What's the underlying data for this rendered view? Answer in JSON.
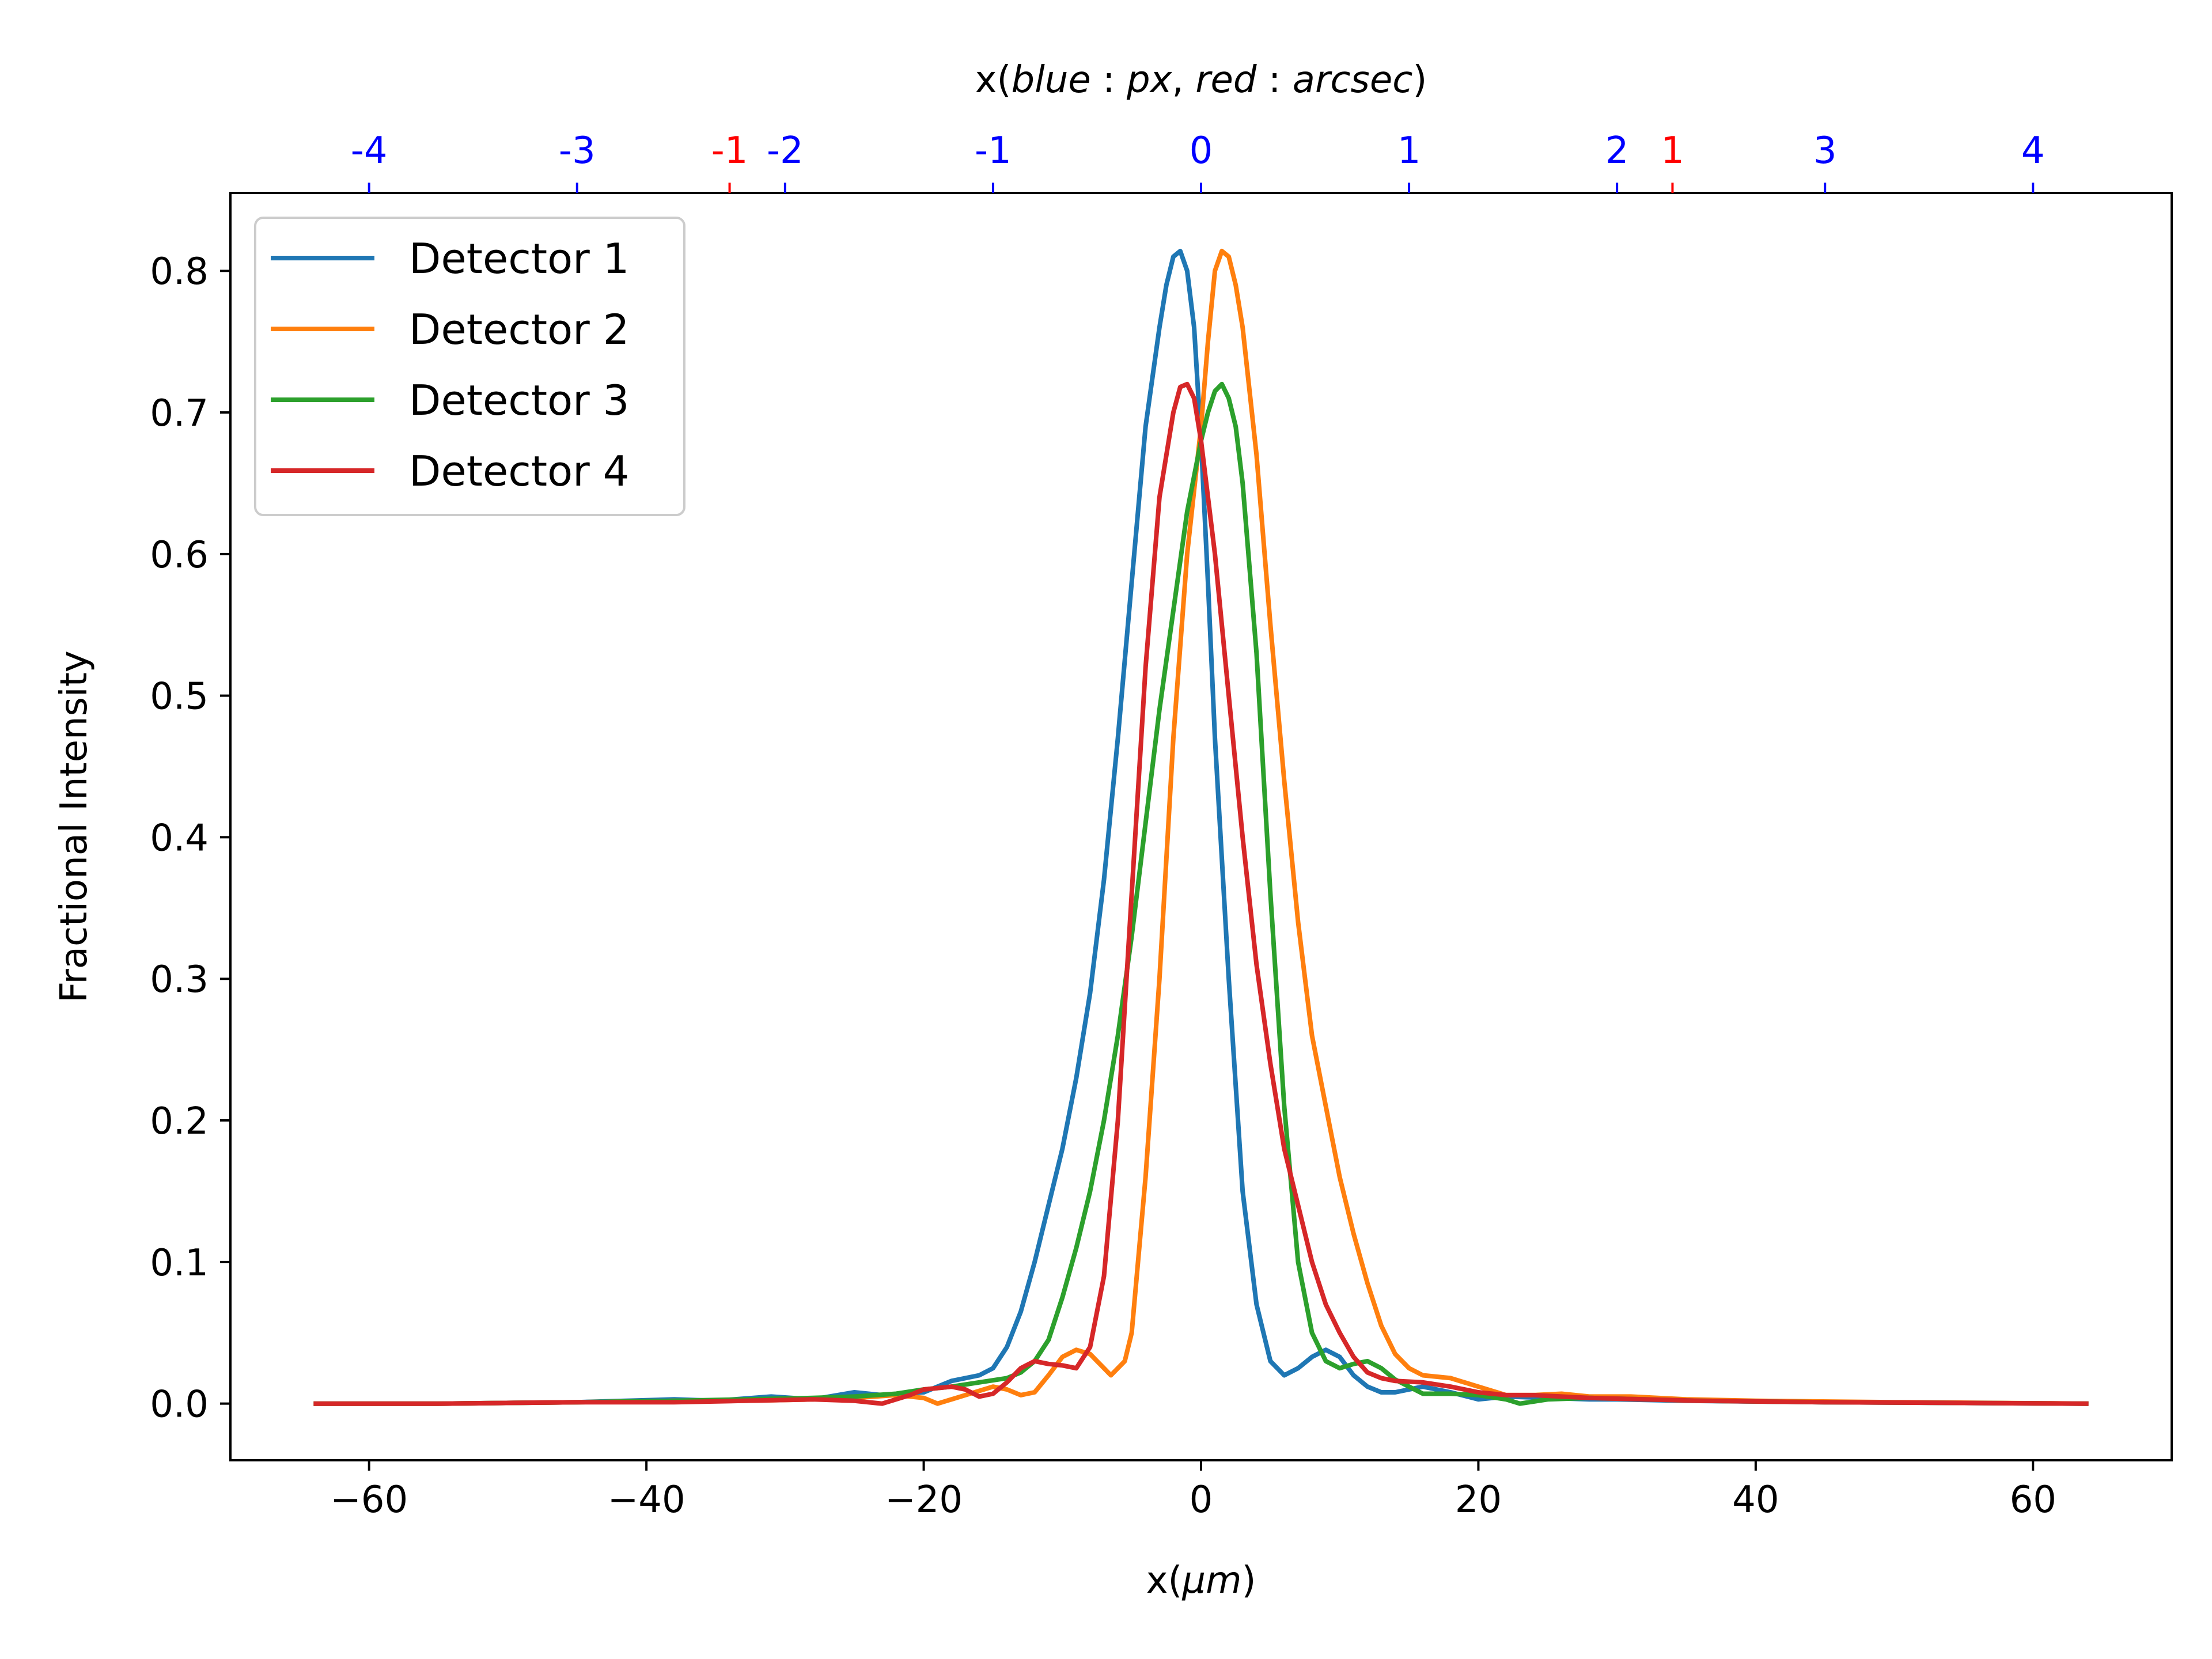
{
  "chart_data": {
    "type": "line",
    "xlabel_prefix": "x(",
    "xlabel_unit": "μm",
    "xlabel_suffix": ")",
    "ylabel": "Fractional Intensity",
    "top_label_prefix": "x(",
    "top_label_blue": "blue",
    "top_label_sep1": " : ",
    "top_label_px": "px",
    "top_label_comma": ", ",
    "top_label_red": "red",
    "top_label_sep2": " : ",
    "top_label_arcsec": "arcsec",
    "top_label_suffix": ")",
    "xlim": [
      -70,
      70
    ],
    "ylim": [
      -0.04,
      0.855
    ],
    "x_ticks": [
      -60,
      -40,
      -20,
      0,
      20,
      40,
      60
    ],
    "x_tick_labels": [
      "−60",
      "−40",
      "−20",
      "0",
      "20",
      "40",
      "60"
    ],
    "y_ticks": [
      0.0,
      0.1,
      0.2,
      0.3,
      0.4,
      0.5,
      0.6,
      0.7,
      0.8
    ],
    "y_tick_labels": [
      "0.0",
      "0.1",
      "0.2",
      "0.3",
      "0.4",
      "0.5",
      "0.6",
      "0.7",
      "0.8"
    ],
    "top_ticks_blue": [
      {
        "x": -60,
        "label": "-4"
      },
      {
        "x": -45,
        "label": "-3"
      },
      {
        "x": -30,
        "label": "-2"
      },
      {
        "x": -15,
        "label": "-1"
      },
      {
        "x": 0,
        "label": "0"
      },
      {
        "x": 15,
        "label": "1"
      },
      {
        "x": 30,
        "label": "2"
      },
      {
        "x": 45,
        "label": "3"
      },
      {
        "x": 60,
        "label": "4"
      }
    ],
    "top_ticks_red": [
      {
        "x": -34,
        "label": "-1"
      },
      {
        "x": 34,
        "label": "1"
      }
    ],
    "blue_color": "#0000ff",
    "red_color": "#ff0000",
    "legend_position": "upper-left",
    "series": [
      {
        "name": "Detector 1",
        "color": "#1f77b4",
        "points": [
          [
            -64,
            0.0
          ],
          [
            -55,
            0.0
          ],
          [
            -45,
            0.001
          ],
          [
            -38,
            0.003
          ],
          [
            -35,
            0.002
          ],
          [
            -31,
            0.005
          ],
          [
            -28,
            0.003
          ],
          [
            -25,
            0.008
          ],
          [
            -23,
            0.006
          ],
          [
            -20,
            0.008
          ],
          [
            -18,
            0.016
          ],
          [
            -16,
            0.02
          ],
          [
            -15,
            0.025
          ],
          [
            -14,
            0.04
          ],
          [
            -13,
            0.065
          ],
          [
            -12,
            0.1
          ],
          [
            -11,
            0.14
          ],
          [
            -10,
            0.18
          ],
          [
            -9,
            0.23
          ],
          [
            -8,
            0.29
          ],
          [
            -7,
            0.37
          ],
          [
            -6,
            0.47
          ],
          [
            -5,
            0.58
          ],
          [
            -4,
            0.69
          ],
          [
            -3,
            0.76
          ],
          [
            -2.5,
            0.79
          ],
          [
            -2,
            0.81
          ],
          [
            -1.5,
            0.814
          ],
          [
            -1,
            0.8
          ],
          [
            -0.5,
            0.76
          ],
          [
            0,
            0.68
          ],
          [
            0.5,
            0.58
          ],
          [
            1,
            0.47
          ],
          [
            2,
            0.3
          ],
          [
            3,
            0.15
          ],
          [
            4,
            0.07
          ],
          [
            5,
            0.03
          ],
          [
            6,
            0.02
          ],
          [
            7,
            0.025
          ],
          [
            8,
            0.033
          ],
          [
            9,
            0.038
          ],
          [
            10,
            0.033
          ],
          [
            11,
            0.02
          ],
          [
            12,
            0.012
          ],
          [
            13,
            0.008
          ],
          [
            14,
            0.008
          ],
          [
            15,
            0.01
          ],
          [
            16,
            0.012
          ],
          [
            18,
            0.008
          ],
          [
            20,
            0.003
          ],
          [
            22,
            0.005
          ],
          [
            25,
            0.004
          ],
          [
            28,
            0.003
          ],
          [
            30,
            0.003
          ],
          [
            35,
            0.002
          ],
          [
            45,
            0.001
          ],
          [
            64,
            0.0
          ]
        ]
      },
      {
        "name": "Detector 2",
        "color": "#ff7f0e",
        "points": [
          [
            -64,
            0.0
          ],
          [
            -55,
            0.0
          ],
          [
            -45,
            0.001
          ],
          [
            -38,
            0.002
          ],
          [
            -33,
            0.002
          ],
          [
            -28,
            0.003
          ],
          [
            -25,
            0.004
          ],
          [
            -22,
            0.006
          ],
          [
            -20,
            0.004
          ],
          [
            -19,
            0.0
          ],
          [
            -17,
            0.006
          ],
          [
            -15,
            0.012
          ],
          [
            -14,
            0.01
          ],
          [
            -13,
            0.006
          ],
          [
            -12,
            0.008
          ],
          [
            -11,
            0.02
          ],
          [
            -10,
            0.033
          ],
          [
            -9,
            0.038
          ],
          [
            -8,
            0.035
          ],
          [
            -7,
            0.025
          ],
          [
            -6.5,
            0.02
          ],
          [
            -5.5,
            0.03
          ],
          [
            -5,
            0.05
          ],
          [
            -4,
            0.16
          ],
          [
            -3,
            0.3
          ],
          [
            -2,
            0.47
          ],
          [
            -1,
            0.6
          ],
          [
            0,
            0.69
          ],
          [
            0.5,
            0.75
          ],
          [
            1,
            0.8
          ],
          [
            1.5,
            0.814
          ],
          [
            2,
            0.81
          ],
          [
            2.5,
            0.79
          ],
          [
            3,
            0.76
          ],
          [
            4,
            0.67
          ],
          [
            5,
            0.55
          ],
          [
            6,
            0.44
          ],
          [
            7,
            0.34
          ],
          [
            8,
            0.26
          ],
          [
            9,
            0.21
          ],
          [
            10,
            0.16
          ],
          [
            11,
            0.12
          ],
          [
            12,
            0.085
          ],
          [
            13,
            0.055
          ],
          [
            14,
            0.035
          ],
          [
            15,
            0.025
          ],
          [
            16,
            0.02
          ],
          [
            18,
            0.018
          ],
          [
            20,
            0.012
          ],
          [
            22,
            0.006
          ],
          [
            24,
            0.006
          ],
          [
            26,
            0.007
          ],
          [
            28,
            0.005
          ],
          [
            31,
            0.005
          ],
          [
            35,
            0.003
          ],
          [
            40,
            0.002
          ],
          [
            50,
            0.001
          ],
          [
            64,
            0.0
          ]
        ]
      },
      {
        "name": "Detector 3",
        "color": "#2ca02c",
        "points": [
          [
            -64,
            0.0
          ],
          [
            -55,
            0.0
          ],
          [
            -45,
            0.001
          ],
          [
            -38,
            0.002
          ],
          [
            -33,
            0.003
          ],
          [
            -28,
            0.004
          ],
          [
            -25,
            0.005
          ],
          [
            -22,
            0.007
          ],
          [
            -20,
            0.01
          ],
          [
            -18,
            0.012
          ],
          [
            -16,
            0.015
          ],
          [
            -14,
            0.018
          ],
          [
            -13,
            0.022
          ],
          [
            -12,
            0.03
          ],
          [
            -11,
            0.045
          ],
          [
            -10,
            0.075
          ],
          [
            -9,
            0.11
          ],
          [
            -8,
            0.15
          ],
          [
            -7,
            0.2
          ],
          [
            -6,
            0.26
          ],
          [
            -5,
            0.33
          ],
          [
            -4,
            0.41
          ],
          [
            -3,
            0.49
          ],
          [
            -2,
            0.56
          ],
          [
            -1,
            0.63
          ],
          [
            0,
            0.68
          ],
          [
            0.5,
            0.7
          ],
          [
            1,
            0.715
          ],
          [
            1.5,
            0.72
          ],
          [
            2,
            0.71
          ],
          [
            2.5,
            0.69
          ],
          [
            3,
            0.65
          ],
          [
            4,
            0.53
          ],
          [
            5,
            0.36
          ],
          [
            6,
            0.21
          ],
          [
            7,
            0.1
          ],
          [
            8,
            0.05
          ],
          [
            9,
            0.03
          ],
          [
            10,
            0.025
          ],
          [
            11,
            0.028
          ],
          [
            12,
            0.03
          ],
          [
            13,
            0.025
          ],
          [
            14,
            0.017
          ],
          [
            15,
            0.012
          ],
          [
            16,
            0.007
          ],
          [
            18,
            0.007
          ],
          [
            20,
            0.006
          ],
          [
            22,
            0.003
          ],
          [
            23,
            0.0
          ],
          [
            25,
            0.003
          ],
          [
            28,
            0.004
          ],
          [
            32,
            0.003
          ],
          [
            36,
            0.002
          ],
          [
            45,
            0.001
          ],
          [
            64,
            0.0
          ]
        ]
      },
      {
        "name": "Detector 4",
        "color": "#d62728",
        "points": [
          [
            -64,
            0.0
          ],
          [
            -55,
            0.0
          ],
          [
            -45,
            0.001
          ],
          [
            -38,
            0.001
          ],
          [
            -33,
            0.002
          ],
          [
            -28,
            0.003
          ],
          [
            -25,
            0.002
          ],
          [
            -23,
            0.0
          ],
          [
            -21,
            0.006
          ],
          [
            -20,
            0.01
          ],
          [
            -18,
            0.012
          ],
          [
            -17,
            0.01
          ],
          [
            -16,
            0.005
          ],
          [
            -15,
            0.007
          ],
          [
            -14,
            0.015
          ],
          [
            -13,
            0.025
          ],
          [
            -12,
            0.03
          ],
          [
            -11,
            0.028
          ],
          [
            -10,
            0.027
          ],
          [
            -9,
            0.025
          ],
          [
            -8,
            0.04
          ],
          [
            -7,
            0.09
          ],
          [
            -6,
            0.2
          ],
          [
            -5,
            0.36
          ],
          [
            -4,
            0.52
          ],
          [
            -3,
            0.64
          ],
          [
            -2,
            0.7
          ],
          [
            -1.5,
            0.718
          ],
          [
            -1,
            0.72
          ],
          [
            -0.5,
            0.71
          ],
          [
            0,
            0.68
          ],
          [
            1,
            0.6
          ],
          [
            2,
            0.5
          ],
          [
            3,
            0.4
          ],
          [
            4,
            0.31
          ],
          [
            5,
            0.24
          ],
          [
            6,
            0.18
          ],
          [
            7,
            0.14
          ],
          [
            8,
            0.1
          ],
          [
            9,
            0.07
          ],
          [
            10,
            0.05
          ],
          [
            11,
            0.033
          ],
          [
            12,
            0.022
          ],
          [
            13,
            0.018
          ],
          [
            14,
            0.016
          ],
          [
            16,
            0.015
          ],
          [
            18,
            0.012
          ],
          [
            20,
            0.008
          ],
          [
            22,
            0.006
          ],
          [
            24,
            0.006
          ],
          [
            26,
            0.005
          ],
          [
            28,
            0.004
          ],
          [
            32,
            0.003
          ],
          [
            36,
            0.002
          ],
          [
            45,
            0.001
          ],
          [
            64,
            0.0
          ]
        ]
      }
    ]
  }
}
